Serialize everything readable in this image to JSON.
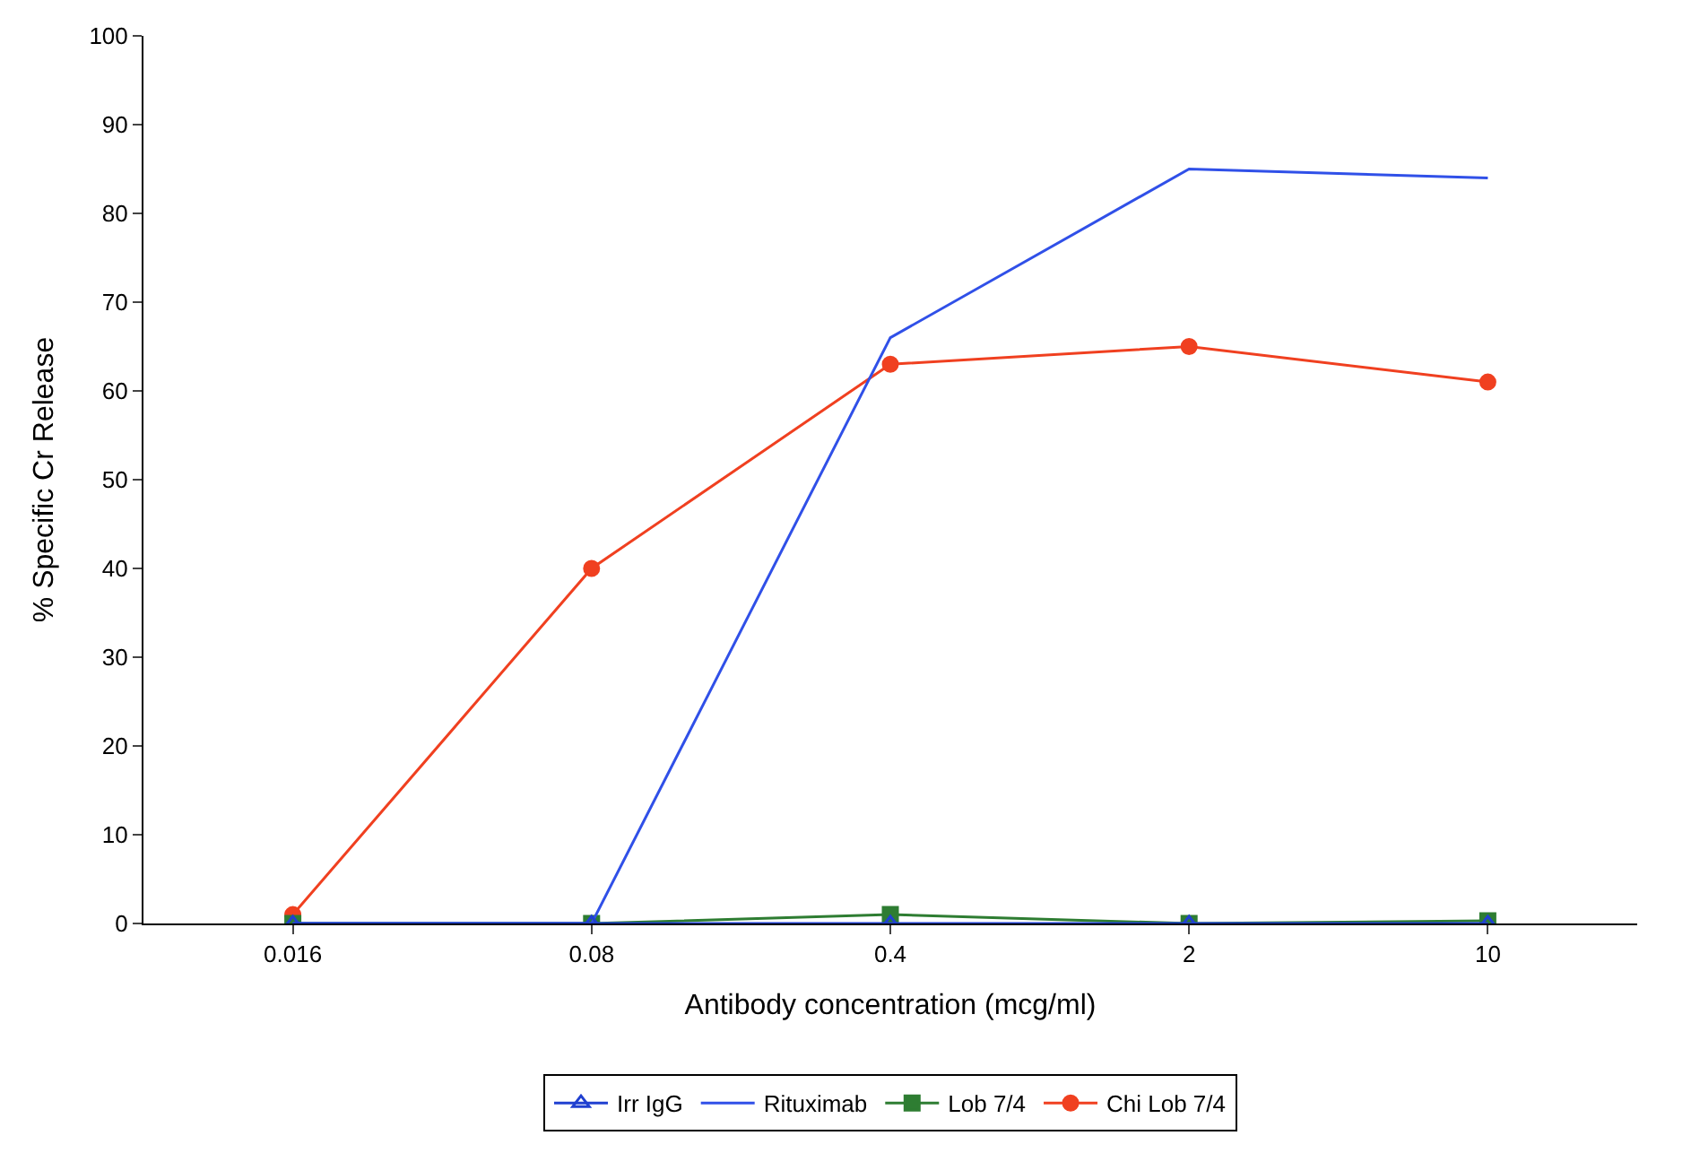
{
  "chart_data": {
    "type": "line",
    "xlabel": "Antibody concentration (mcg/ml)",
    "ylabel": "% Specific Cr Release",
    "categories": [
      "0.016",
      "0.08",
      "0.4",
      "2",
      "10"
    ],
    "series": [
      {
        "name": "Irr IgG",
        "color": "#2040d0",
        "marker": "triangle",
        "values": [
          0,
          0,
          0,
          0,
          0
        ]
      },
      {
        "name": "Rituximab",
        "color": "#3050e8",
        "marker": "none",
        "values": [
          0,
          0,
          66,
          85,
          84
        ]
      },
      {
        "name": "Lob 7/4",
        "color": "#2e7d32",
        "marker": "square",
        "values": [
          0,
          0,
          1,
          0,
          0.3
        ]
      },
      {
        "name": "Chi Lob 7/4",
        "color": "#f04020",
        "marker": "circle",
        "values": [
          1,
          40,
          63,
          65,
          61
        ]
      }
    ],
    "ylim": [
      0,
      100
    ],
    "yticks": [
      0,
      10,
      20,
      30,
      40,
      50,
      60,
      70,
      80,
      90,
      100
    ],
    "legend": "bottom"
  }
}
